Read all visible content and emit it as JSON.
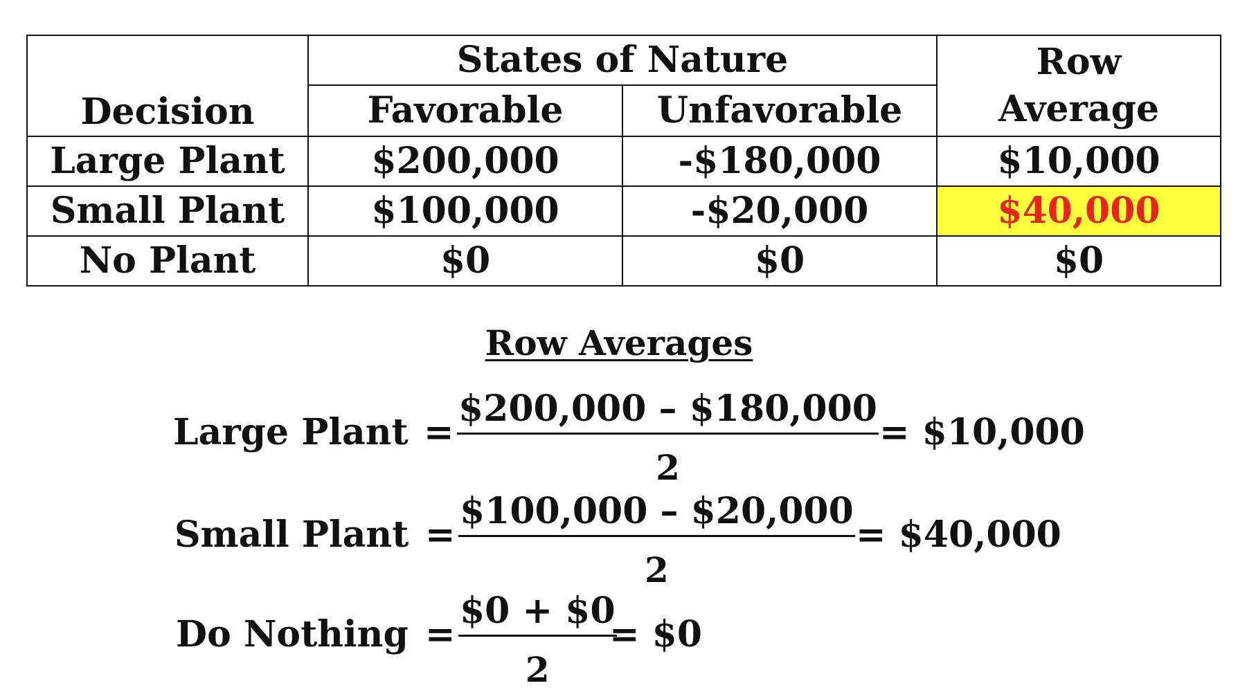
{
  "table": {
    "headers": {
      "states_of_nature": "States of Nature",
      "row_average_line1": "Row",
      "row_average_line2": "Average",
      "decision": "Decision",
      "favorable": "Favorable",
      "unfavorable": "Unfavorable"
    },
    "rows": [
      {
        "decision": "Large Plant",
        "favorable": "$200,000",
        "unfavorable": "-$180,000",
        "row_average": "$10,000"
      },
      {
        "decision": "Small Plant",
        "favorable": "$100,000",
        "unfavorable": "-$20,000",
        "row_average": "$40,000"
      },
      {
        "decision": "No Plant",
        "favorable": "$0",
        "unfavorable": "$0",
        "row_average": "$0"
      }
    ],
    "highlight_color": "#ffff3c",
    "highlight_text_color": "#e8251c"
  },
  "row_averages": {
    "title": "Row Averages",
    "equations": [
      {
        "label": "Large Plant",
        "equals": "=",
        "numerator": "$200,000 – $180,000",
        "denominator": "2",
        "result": "= $10,000"
      },
      {
        "label": "Small Plant",
        "equals": "=",
        "numerator": "$100,000 – $20,000",
        "denominator": "2",
        "result": "= $40,000"
      },
      {
        "label": "Do Nothing",
        "equals": "=",
        "numerator": "$0 + $0",
        "denominator": "2",
        "result": "= $0"
      }
    ]
  }
}
